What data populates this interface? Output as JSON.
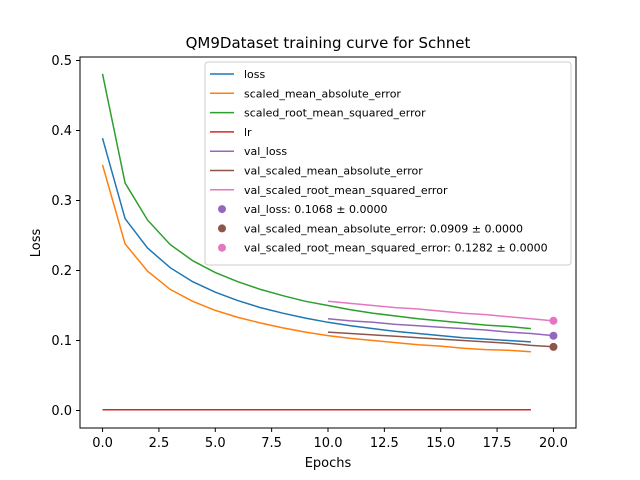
{
  "chart_data": {
    "type": "line",
    "title": "QM9Dataset training curve for Schnet",
    "xlabel": "Epochs",
    "ylabel": "Loss",
    "xlim": [
      -1,
      21
    ],
    "ylim": [
      -0.025,
      0.505
    ],
    "xticks": [
      0.0,
      2.5,
      5.0,
      7.5,
      10.0,
      12.5,
      15.0,
      17.5,
      20.0
    ],
    "xtick_labels": [
      "0.0",
      "2.5",
      "5.0",
      "7.5",
      "10.0",
      "12.5",
      "15.0",
      "17.5",
      "20.0"
    ],
    "yticks": [
      0.0,
      0.1,
      0.2,
      0.3,
      0.4,
      0.5
    ],
    "ytick_labels": [
      "0.0",
      "0.1",
      "0.2",
      "0.3",
      "0.4",
      "0.5"
    ],
    "grid": false,
    "legend_position": "top-right",
    "series": [
      {
        "name": "loss",
        "color": "#1f77b4",
        "x": [
          0,
          1,
          2,
          3,
          4,
          5,
          6,
          7,
          8,
          9,
          10,
          11,
          12,
          13,
          14,
          15,
          16,
          17,
          18,
          19
        ],
        "y": [
          0.389,
          0.274,
          0.232,
          0.204,
          0.184,
          0.169,
          0.157,
          0.147,
          0.139,
          0.132,
          0.126,
          0.121,
          0.117,
          0.113,
          0.11,
          0.107,
          0.104,
          0.102,
          0.1,
          0.098
        ]
      },
      {
        "name": "scaled_mean_absolute_error",
        "color": "#ff7f0e",
        "x": [
          0,
          1,
          2,
          3,
          4,
          5,
          6,
          7,
          8,
          9,
          10,
          11,
          12,
          13,
          14,
          15,
          16,
          17,
          18,
          19
        ],
        "y": [
          0.351,
          0.238,
          0.199,
          0.173,
          0.156,
          0.143,
          0.133,
          0.125,
          0.118,
          0.112,
          0.107,
          0.103,
          0.1,
          0.097,
          0.094,
          0.092,
          0.089,
          0.087,
          0.086,
          0.084
        ]
      },
      {
        "name": "scaled_root_mean_squared_error",
        "color": "#2ca02c",
        "x": [
          0,
          1,
          2,
          3,
          4,
          5,
          6,
          7,
          8,
          9,
          10,
          11,
          12,
          13,
          14,
          15,
          16,
          17,
          18,
          19
        ],
        "y": [
          0.481,
          0.325,
          0.272,
          0.237,
          0.214,
          0.197,
          0.184,
          0.173,
          0.164,
          0.156,
          0.15,
          0.144,
          0.139,
          0.135,
          0.131,
          0.128,
          0.125,
          0.122,
          0.12,
          0.117
        ]
      },
      {
        "name": "lr",
        "color": "#d62728",
        "x": [
          0,
          1,
          2,
          3,
          4,
          5,
          6,
          7,
          8,
          9,
          10,
          11,
          12,
          13,
          14,
          15,
          16,
          17,
          18,
          19
        ],
        "y": [
          0.001,
          0.001,
          0.001,
          0.001,
          0.001,
          0.001,
          0.001,
          0.001,
          0.001,
          0.001,
          0.001,
          0.001,
          0.001,
          0.001,
          0.001,
          0.001,
          0.001,
          0.001,
          0.001,
          0.001
        ]
      },
      {
        "name": "val_loss",
        "color": "#9467bd",
        "x": [
          10,
          11,
          12,
          13,
          14,
          15,
          16,
          17,
          18,
          19,
          20
        ],
        "y": [
          0.131,
          0.128,
          0.126,
          0.123,
          0.121,
          0.119,
          0.117,
          0.115,
          0.112,
          0.11,
          0.107
        ]
      },
      {
        "name": "val_scaled_mean_absolute_error",
        "color": "#8c564b",
        "x": [
          10,
          11,
          12,
          13,
          14,
          15,
          16,
          17,
          18,
          19,
          20
        ],
        "y": [
          0.112,
          0.11,
          0.108,
          0.106,
          0.104,
          0.102,
          0.1,
          0.098,
          0.096,
          0.093,
          0.091
        ]
      },
      {
        "name": "val_scaled_root_mean_squared_error",
        "color": "#e377c2",
        "x": [
          10,
          11,
          12,
          13,
          14,
          15,
          16,
          17,
          18,
          19,
          20
        ],
        "y": [
          0.156,
          0.153,
          0.15,
          0.147,
          0.145,
          0.142,
          0.139,
          0.137,
          0.134,
          0.131,
          0.128
        ]
      }
    ],
    "points": [
      {
        "label": "val_loss: 0.1068 ± 0.0000",
        "color": "#9467bd",
        "x": 20,
        "y": 0.1068
      },
      {
        "label": "val_scaled_mean_absolute_error: 0.0909 ± 0.0000",
        "color": "#8c564b",
        "x": 20,
        "y": 0.0909
      },
      {
        "label": "val_scaled_root_mean_squared_error: 0.1282 ± 0.0000",
        "color": "#e377c2",
        "x": 20,
        "y": 0.1282
      }
    ]
  }
}
